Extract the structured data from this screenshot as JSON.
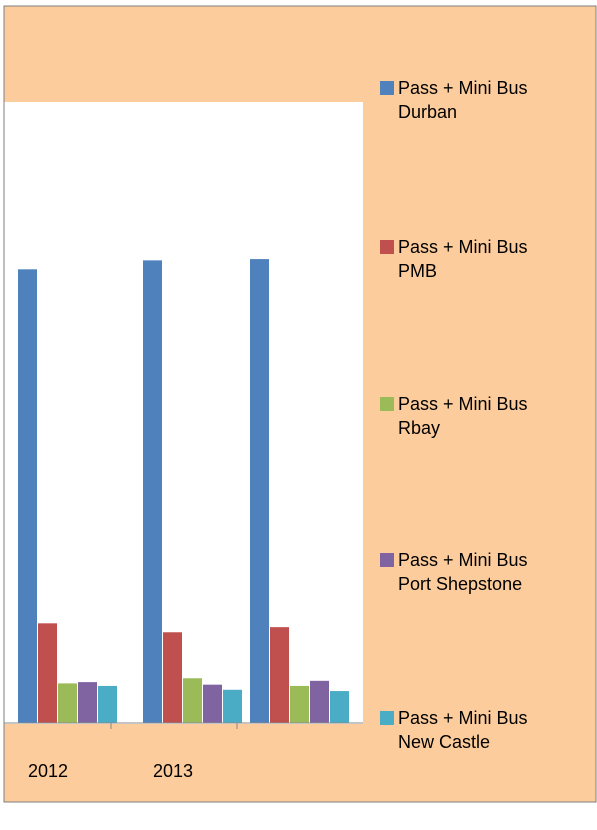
{
  "chart_data": {
    "type": "bar",
    "categories": [
      "",
      "2012",
      "2013",
      ""
    ],
    "series": [
      {
        "name_line1": "Pass + Mini Bus",
        "name_line2": "Durban",
        "values": [
          null,
          355,
          362,
          363
        ]
      },
      {
        "name_line1": "Pass + Mini Bus",
        "name_line2": "PMB",
        "values": [
          null,
          78,
          71,
          75
        ]
      },
      {
        "name_line1": "Pass + Mini Bus",
        "name_line2": "Rbay",
        "values": [
          null,
          31,
          35,
          29
        ]
      },
      {
        "name_line1": "Pass + Mini Bus",
        "name_line2": "Port Shepstone",
        "values": [
          null,
          32,
          30,
          33
        ]
      },
      {
        "name_line1": "Pass + Mini Bus",
        "name_line2": "New Castle",
        "values": [
          null,
          29,
          26,
          25
        ]
      }
    ],
    "legend_position": "right",
    "grid": false,
    "colors": {
      "series": [
        "#4f81bd",
        "#c0504d",
        "#9bbb59",
        "#8064a2",
        "#4bacc6"
      ],
      "chart_area": "#fccc9c",
      "plot_area": "#ffffff",
      "axis": "#888888",
      "frame": "#7f7f7f"
    }
  }
}
